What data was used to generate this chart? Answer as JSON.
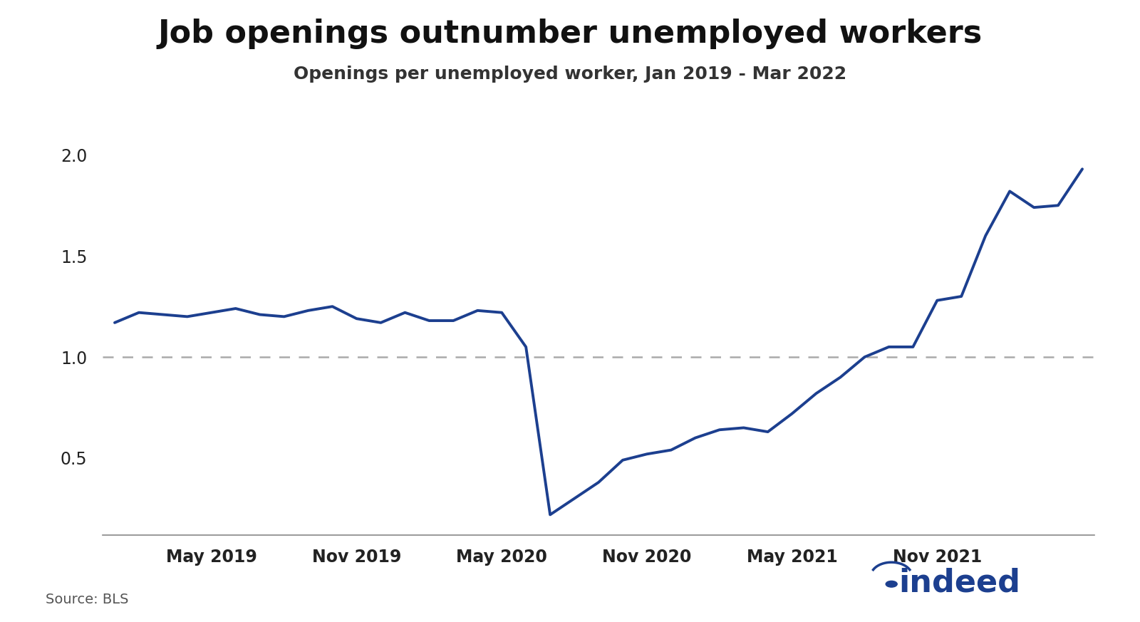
{
  "title": "Job openings outnumber unemployed workers",
  "subtitle": "Openings per unemployed worker, Jan 2019 - Mar 2022",
  "source": "Source: BLS",
  "line_color": "#1c3f8f",
  "dashed_line_y": 1.0,
  "dashed_line_color": "#aaaaaa",
  "background_color": "#ffffff",
  "ylim": [
    0.12,
    2.12
  ],
  "yticks": [
    0.5,
    1.0,
    1.5,
    2.0
  ],
  "x_tick_labels": [
    "May 2019",
    "Nov 2019",
    "May 2020",
    "Nov 2020",
    "May 2021",
    "Nov 2021"
  ],
  "values": [
    1.17,
    1.22,
    1.21,
    1.2,
    1.22,
    1.24,
    1.21,
    1.2,
    1.23,
    1.25,
    1.19,
    1.17,
    1.22,
    1.18,
    1.18,
    1.23,
    1.22,
    1.05,
    0.22,
    0.3,
    0.38,
    0.49,
    0.52,
    0.54,
    0.6,
    0.64,
    0.65,
    0.63,
    0.72,
    0.82,
    0.9,
    1.0,
    1.05,
    1.05,
    1.28,
    1.3,
    1.6,
    1.82,
    1.74,
    1.75,
    1.93
  ],
  "title_fontsize": 32,
  "subtitle_fontsize": 18,
  "tick_fontsize": 17,
  "source_fontsize": 14,
  "indeed_color": "#1c3f8f",
  "indeed_fontsize": 32,
  "tick_color": "#222222"
}
